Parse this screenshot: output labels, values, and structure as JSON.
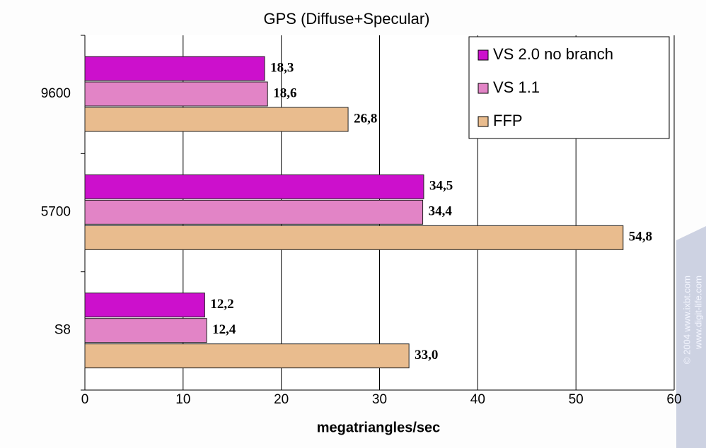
{
  "chart_data": {
    "type": "hbar",
    "title": "GPS (Diffuse+Specular)",
    "xlabel": "megatriangles/sec",
    "categories": [
      "9600",
      "5700",
      "S8"
    ],
    "series": [
      {
        "name": "VS 2.0 no branch",
        "color": "#cc10cc",
        "values": [
          18.3,
          34.5,
          12.2
        ],
        "value_labels": [
          "18,3",
          "34,5",
          "12,2"
        ]
      },
      {
        "name": "VS 1.1",
        "color": "#e284c6",
        "values": [
          18.6,
          34.4,
          12.4
        ],
        "value_labels": [
          "18,6",
          "34,4",
          "12,4"
        ]
      },
      {
        "name": "FFP",
        "color": "#e9bc8e",
        "values": [
          26.8,
          54.8,
          33.0
        ],
        "value_labels": [
          "26,8",
          "54,8",
          "33,0"
        ]
      }
    ],
    "xlim": [
      0,
      60
    ],
    "xticks": [
      0,
      10,
      20,
      30,
      40,
      50,
      60
    ],
    "grid": true,
    "legend": "upper right",
    "watermark": [
      "© 2004 www.ixbt.com",
      "www.digit-life.com"
    ]
  }
}
